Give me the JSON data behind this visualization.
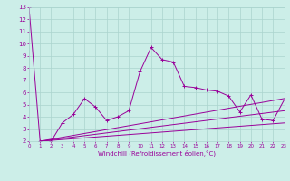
{
  "xlabel": "Windchill (Refroidissement éolien,°C)",
  "bg_color": "#cceee8",
  "grid_color": "#aad4ce",
  "line_color": "#990099",
  "x_scatter": [
    0,
    1,
    2,
    3,
    4,
    5,
    6,
    7,
    8,
    9,
    10,
    11,
    12,
    13,
    14,
    15,
    16,
    17,
    18,
    19,
    20,
    21,
    22,
    23
  ],
  "y_scatter": [
    13,
    2,
    2,
    3.5,
    4.2,
    5.5,
    4.8,
    3.7,
    4.0,
    4.5,
    7.7,
    9.7,
    8.7,
    8.5,
    6.5,
    6.4,
    6.2,
    6.1,
    5.7,
    4.4,
    5.8,
    3.8,
    3.7,
    5.4
  ],
  "line1_x": [
    1,
    23
  ],
  "line1_y": [
    2.0,
    5.5
  ],
  "line2_x": [
    1,
    23
  ],
  "line2_y": [
    2.0,
    4.5
  ],
  "line3_x": [
    1,
    23
  ],
  "line3_y": [
    2.0,
    3.5
  ],
  "xlim": [
    0,
    23
  ],
  "ylim": [
    2,
    13
  ],
  "xticks": [
    0,
    1,
    2,
    3,
    4,
    5,
    6,
    7,
    8,
    9,
    10,
    11,
    12,
    13,
    14,
    15,
    16,
    17,
    18,
    19,
    20,
    21,
    22,
    23
  ],
  "yticks": [
    2,
    3,
    4,
    5,
    6,
    7,
    8,
    9,
    10,
    11,
    12,
    13
  ]
}
